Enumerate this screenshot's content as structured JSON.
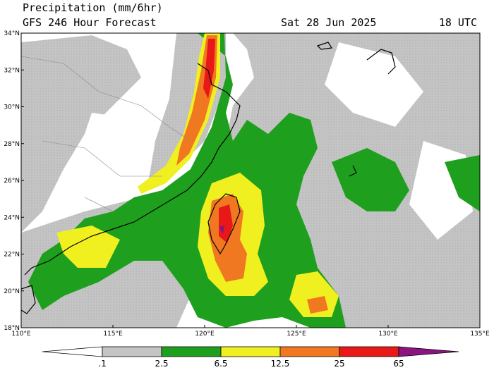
{
  "header": {
    "title": "Precipitation (mm/6hr)",
    "model": "GFS 246 Hour Forecast",
    "date": "Sat 28 Jun 2025",
    "time": "18 UTC"
  },
  "map": {
    "lat_labels": [
      "34°N",
      "32°N",
      "30°N",
      "28°N",
      "26°N",
      "24°N",
      "22°N",
      "20°N",
      "18°N"
    ],
    "lon_labels": [
      "110°E",
      "115°E",
      "120°E",
      "125°E",
      "130°E",
      "135°E"
    ]
  },
  "colorbar": {
    "labels": [
      ".1",
      "2.5",
      "6.5",
      "12.5",
      "25",
      "65"
    ]
  }
}
